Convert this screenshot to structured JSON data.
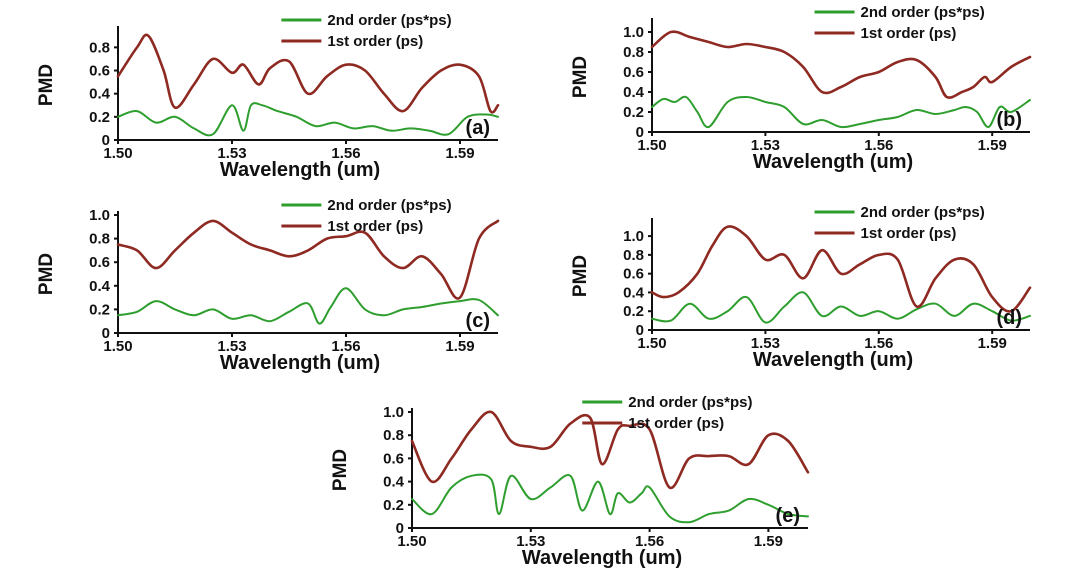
{
  "chart_data": [
    {
      "type": "line",
      "panel_label": "(a)",
      "ylabel": "PMD",
      "xlabel": "Wavelength (um)",
      "xlim": [
        1.5,
        1.6
      ],
      "ylim": [
        0,
        0.95
      ],
      "xticks": [
        "1.50",
        "1.53",
        "1.56",
        "1.59"
      ],
      "yticks": [
        "0",
        "0.2",
        "0.4",
        "0.6",
        "0.8"
      ],
      "legend": [
        "2nd order (ps*ps)",
        "1st order (ps)"
      ],
      "series": [
        {
          "name": "2nd order (ps*ps)",
          "color": "#2e9e2e",
          "x": [
            1.5,
            1.505,
            1.51,
            1.515,
            1.52,
            1.525,
            1.53,
            1.533,
            1.535,
            1.538,
            1.542,
            1.547,
            1.552,
            1.557,
            1.562,
            1.567,
            1.572,
            1.577,
            1.582,
            1.587,
            1.592,
            1.597,
            1.6
          ],
          "y": [
            0.2,
            0.25,
            0.15,
            0.2,
            0.1,
            0.05,
            0.3,
            0.08,
            0.3,
            0.3,
            0.25,
            0.2,
            0.12,
            0.15,
            0.1,
            0.12,
            0.08,
            0.1,
            0.08,
            0.05,
            0.2,
            0.22,
            0.2
          ]
        },
        {
          "name": "1st order (ps)",
          "color": "#8e2a22",
          "x": [
            1.5,
            1.505,
            1.508,
            1.512,
            1.515,
            1.52,
            1.525,
            1.53,
            1.533,
            1.537,
            1.54,
            1.545,
            1.55,
            1.555,
            1.56,
            1.565,
            1.57,
            1.575,
            1.58,
            1.585,
            1.59,
            1.595,
            1.598,
            1.6
          ],
          "y": [
            0.55,
            0.8,
            0.9,
            0.6,
            0.28,
            0.48,
            0.7,
            0.58,
            0.65,
            0.48,
            0.62,
            0.68,
            0.4,
            0.55,
            0.65,
            0.6,
            0.4,
            0.25,
            0.45,
            0.6,
            0.65,
            0.55,
            0.25,
            0.3
          ]
        }
      ]
    },
    {
      "type": "line",
      "panel_label": "(b)",
      "ylabel": "PMD",
      "xlabel": "Wavelength (um)",
      "xlim": [
        1.5,
        1.6
      ],
      "ylim": [
        0,
        1.1
      ],
      "xticks": [
        "1.50",
        "1.53",
        "1.56",
        "1.59"
      ],
      "yticks": [
        "0",
        "0.2",
        "0.4",
        "0.6",
        "0.8",
        "1.0"
      ],
      "legend": [
        "2nd order (ps*ps)",
        "1st order (ps)"
      ],
      "series": [
        {
          "name": "2nd order (ps*ps)",
          "color": "#2e9e2e",
          "x": [
            1.5,
            1.503,
            1.506,
            1.509,
            1.512,
            1.515,
            1.52,
            1.525,
            1.53,
            1.535,
            1.54,
            1.545,
            1.55,
            1.555,
            1.56,
            1.565,
            1.57,
            1.575,
            1.58,
            1.583,
            1.586,
            1.589,
            1.592,
            1.595,
            1.6
          ],
          "y": [
            0.25,
            0.33,
            0.3,
            0.35,
            0.2,
            0.05,
            0.3,
            0.35,
            0.3,
            0.25,
            0.08,
            0.12,
            0.05,
            0.08,
            0.12,
            0.15,
            0.22,
            0.18,
            0.22,
            0.25,
            0.2,
            0.05,
            0.25,
            0.2,
            0.32
          ]
        },
        {
          "name": "1st order (ps)",
          "color": "#8e2a22",
          "x": [
            1.5,
            1.505,
            1.51,
            1.515,
            1.52,
            1.525,
            1.53,
            1.535,
            1.54,
            1.545,
            1.55,
            1.555,
            1.56,
            1.565,
            1.57,
            1.575,
            1.578,
            1.582,
            1.585,
            1.588,
            1.59,
            1.595,
            1.6
          ],
          "y": [
            0.85,
            1.0,
            0.95,
            0.9,
            0.85,
            0.88,
            0.85,
            0.8,
            0.65,
            0.4,
            0.45,
            0.55,
            0.6,
            0.7,
            0.72,
            0.55,
            0.35,
            0.4,
            0.45,
            0.55,
            0.5,
            0.65,
            0.75
          ]
        }
      ]
    },
    {
      "type": "line",
      "panel_label": "(c)",
      "ylabel": "PMD",
      "xlabel": "Wavelength (um)",
      "xlim": [
        1.5,
        1.6
      ],
      "ylim": [
        0,
        1.0
      ],
      "xticks": [
        "1.50",
        "1.53",
        "1.56",
        "1.59"
      ],
      "yticks": [
        "0",
        "0.2",
        "0.4",
        "0.6",
        "0.8",
        "1.0"
      ],
      "legend": [
        "2nd order (ps*ps)",
        "1st order (ps)"
      ],
      "series": [
        {
          "name": "2nd order (ps*ps)",
          "color": "#2e9e2e",
          "x": [
            1.5,
            1.505,
            1.51,
            1.515,
            1.52,
            1.525,
            1.53,
            1.535,
            1.54,
            1.545,
            1.55,
            1.553,
            1.556,
            1.56,
            1.565,
            1.57,
            1.575,
            1.58,
            1.585,
            1.59,
            1.595,
            1.6
          ],
          "y": [
            0.15,
            0.18,
            0.27,
            0.2,
            0.15,
            0.2,
            0.12,
            0.15,
            0.1,
            0.18,
            0.25,
            0.08,
            0.22,
            0.38,
            0.2,
            0.15,
            0.2,
            0.22,
            0.25,
            0.27,
            0.28,
            0.15
          ]
        },
        {
          "name": "1st order (ps)",
          "color": "#8e2a22",
          "x": [
            1.5,
            1.505,
            1.51,
            1.515,
            1.52,
            1.525,
            1.53,
            1.535,
            1.54,
            1.545,
            1.55,
            1.555,
            1.56,
            1.565,
            1.57,
            1.575,
            1.58,
            1.585,
            1.59,
            1.595,
            1.6
          ],
          "y": [
            0.75,
            0.7,
            0.55,
            0.7,
            0.85,
            0.95,
            0.85,
            0.75,
            0.7,
            0.65,
            0.7,
            0.8,
            0.82,
            0.85,
            0.65,
            0.55,
            0.65,
            0.5,
            0.3,
            0.8,
            0.95
          ]
        }
      ]
    },
    {
      "type": "line",
      "panel_label": "(d)",
      "ylabel": "PMD",
      "xlabel": "Wavelength (um)",
      "xlim": [
        1.5,
        1.6
      ],
      "ylim": [
        0,
        1.15
      ],
      "xticks": [
        "1.50",
        "1.53",
        "1.56",
        "1.59"
      ],
      "yticks": [
        "0",
        "0.2",
        "0.4",
        "0.6",
        "0.8",
        "1.0"
      ],
      "legend": [
        "2nd order (ps*ps)",
        "1st order (ps)"
      ],
      "series": [
        {
          "name": "2nd order (ps*ps)",
          "color": "#2e9e2e",
          "x": [
            1.5,
            1.505,
            1.51,
            1.515,
            1.52,
            1.525,
            1.53,
            1.535,
            1.54,
            1.545,
            1.55,
            1.555,
            1.56,
            1.565,
            1.57,
            1.575,
            1.58,
            1.585,
            1.59,
            1.595,
            1.6
          ],
          "y": [
            0.12,
            0.1,
            0.28,
            0.12,
            0.2,
            0.35,
            0.08,
            0.25,
            0.4,
            0.15,
            0.25,
            0.15,
            0.2,
            0.12,
            0.22,
            0.28,
            0.15,
            0.28,
            0.2,
            0.1,
            0.15
          ]
        },
        {
          "name": "1st order (ps)",
          "color": "#8e2a22",
          "x": [
            1.5,
            1.503,
            1.507,
            1.512,
            1.516,
            1.52,
            1.525,
            1.53,
            1.535,
            1.54,
            1.545,
            1.55,
            1.555,
            1.56,
            1.565,
            1.57,
            1.575,
            1.58,
            1.585,
            1.59,
            1.595,
            1.6
          ],
          "y": [
            0.4,
            0.35,
            0.4,
            0.6,
            0.9,
            1.1,
            1.0,
            0.75,
            0.8,
            0.55,
            0.85,
            0.6,
            0.7,
            0.8,
            0.75,
            0.25,
            0.55,
            0.75,
            0.7,
            0.35,
            0.2,
            0.45
          ]
        }
      ]
    },
    {
      "type": "line",
      "panel_label": "(e)",
      "ylabel": "PMD",
      "xlabel": "Wavelength (um)",
      "xlim": [
        1.5,
        1.6
      ],
      "ylim": [
        0,
        1.0
      ],
      "xticks": [
        "1.50",
        "1.53",
        "1.56",
        "1.59"
      ],
      "yticks": [
        "0",
        "0.2",
        "0.4",
        "0.6",
        "0.8",
        "1.0"
      ],
      "legend": [
        "2nd order (ps*ps)",
        "1st order (ps)"
      ],
      "series": [
        {
          "name": "2nd order (ps*ps)",
          "color": "#2e9e2e",
          "x": [
            1.5,
            1.505,
            1.51,
            1.515,
            1.52,
            1.522,
            1.525,
            1.53,
            1.535,
            1.54,
            1.543,
            1.547,
            1.55,
            1.552,
            1.555,
            1.558,
            1.56,
            1.565,
            1.57,
            1.575,
            1.58,
            1.585,
            1.59,
            1.595,
            1.6
          ],
          "y": [
            0.25,
            0.12,
            0.35,
            0.45,
            0.42,
            0.12,
            0.45,
            0.25,
            0.35,
            0.45,
            0.15,
            0.4,
            0.12,
            0.3,
            0.22,
            0.3,
            0.35,
            0.1,
            0.05,
            0.12,
            0.15,
            0.25,
            0.2,
            0.12,
            0.1
          ]
        },
        {
          "name": "1st order (ps)",
          "color": "#8e2a22",
          "x": [
            1.5,
            1.505,
            1.51,
            1.515,
            1.52,
            1.525,
            1.53,
            1.535,
            1.54,
            1.545,
            1.548,
            1.552,
            1.555,
            1.56,
            1.565,
            1.57,
            1.575,
            1.58,
            1.585,
            1.59,
            1.595,
            1.6
          ],
          "y": [
            0.75,
            0.4,
            0.6,
            0.85,
            1.0,
            0.75,
            0.7,
            0.7,
            0.9,
            0.95,
            0.55,
            0.85,
            0.88,
            0.85,
            0.35,
            0.6,
            0.62,
            0.62,
            0.55,
            0.8,
            0.75,
            0.48
          ]
        }
      ]
    }
  ]
}
